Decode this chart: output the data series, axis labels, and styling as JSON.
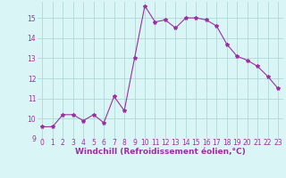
{
  "x": [
    0,
    1,
    2,
    3,
    4,
    5,
    6,
    7,
    8,
    9,
    10,
    11,
    12,
    13,
    14,
    15,
    16,
    17,
    18,
    19,
    20,
    21,
    22,
    23
  ],
  "y": [
    9.6,
    9.6,
    10.2,
    10.2,
    9.9,
    10.2,
    9.8,
    11.1,
    10.4,
    13.0,
    15.6,
    14.8,
    14.9,
    14.5,
    15.0,
    15.0,
    14.9,
    14.6,
    13.7,
    13.1,
    12.9,
    12.6,
    12.1,
    11.5
  ],
  "line_color": "#9b30a0",
  "marker": "*",
  "marker_size": 3,
  "xlabel": "Windchill (Refroidissement éolien,°C)",
  "xlabel_fontsize": 6.5,
  "bg_color": "#d9f5f5",
  "grid_color": "#b0d8d8",
  "tick_color": "#9b30a0",
  "label_color": "#9b30a0",
  "ylim": [
    9,
    15.8
  ],
  "xlim": [
    -0.5,
    23.5
  ],
  "yticks": [
    9,
    10,
    11,
    12,
    13,
    14,
    15
  ],
  "xticks": [
    0,
    1,
    2,
    3,
    4,
    5,
    6,
    7,
    8,
    9,
    10,
    11,
    12,
    13,
    14,
    15,
    16,
    17,
    18,
    19,
    20,
    21,
    22,
    23
  ],
  "tick_fontsize": 5.5
}
